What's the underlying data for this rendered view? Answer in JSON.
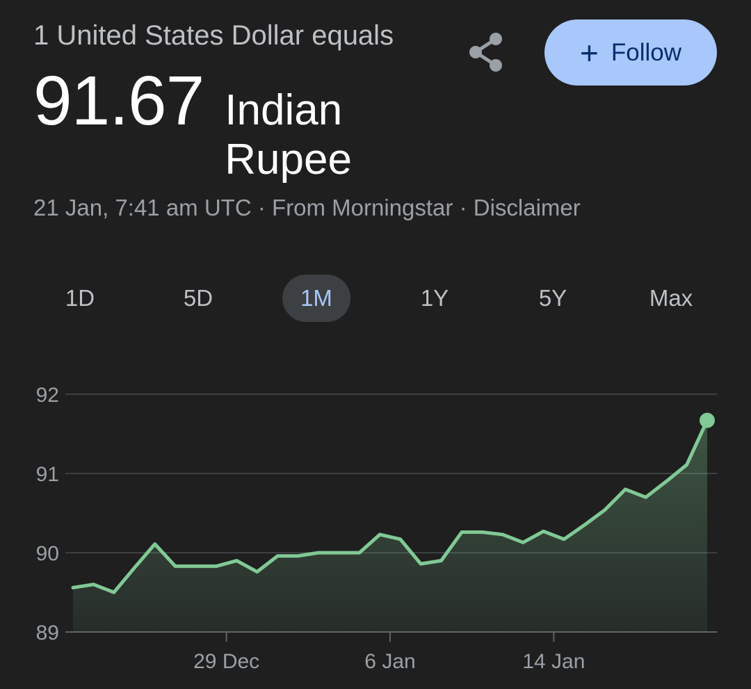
{
  "header": {
    "from_text": "1 United States Dollar equals",
    "to_value": "91.67",
    "to_currency": "Indian Rupee"
  },
  "actions": {
    "share_icon": "share-icon",
    "follow_label": "Follow",
    "follow_icon": "plus-icon"
  },
  "meta": {
    "timestamp": "21 Jan, 7:41 am UTC",
    "separator": "·",
    "source": "From Morningstar",
    "disclaimer": "Disclaimer"
  },
  "range_tabs": [
    "1D",
    "5D",
    "1M",
    "1Y",
    "5Y",
    "Max"
  ],
  "active_range": "1M",
  "colors": {
    "background": "#1f1f1f",
    "line": "#81c995",
    "accent": "#a8c7fa",
    "grid": "#3c4043"
  },
  "chart_data": {
    "type": "area",
    "title": "",
    "xlabel": "",
    "ylabel": "",
    "ylim": [
      89,
      92
    ],
    "yticks": [
      92,
      91,
      90,
      89
    ],
    "grid": true,
    "xtick_labels": [
      "29 Dec",
      "6 Jan",
      "14 Jan"
    ],
    "xtick_positions": [
      7.5,
      15.5,
      23.5
    ],
    "x_count": 32,
    "series": [
      {
        "values": [
          89.56,
          89.6,
          89.5,
          89.81,
          90.11,
          89.83,
          89.83,
          89.83,
          89.9,
          89.76,
          89.96,
          89.96,
          90.0,
          90.0,
          90.0,
          90.23,
          90.17,
          89.86,
          89.9,
          90.26,
          90.26,
          90.23,
          90.13,
          90.27,
          90.17,
          90.35,
          90.54,
          90.8,
          90.7,
          90.9,
          91.11,
          91.67
        ]
      }
    ],
    "last_value": 91.67
  }
}
